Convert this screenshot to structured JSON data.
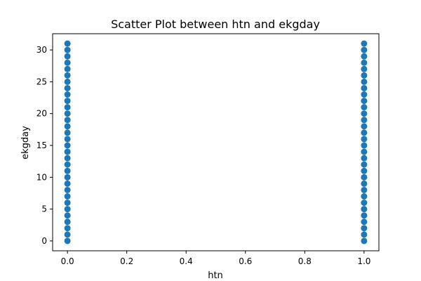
{
  "chart_data": {
    "type": "scatter",
    "title": "Scatter Plot between htn and ekgday",
    "xlabel": "htn",
    "ylabel": "ekgday",
    "xlim": [
      -0.05,
      1.05
    ],
    "ylim": [
      -1.55,
      32.55
    ],
    "xticks": [
      0.0,
      0.2,
      0.4,
      0.6,
      0.8,
      1.0
    ],
    "xtick_labels": [
      "0.0",
      "0.2",
      "0.4",
      "0.6",
      "0.8",
      "1.0"
    ],
    "yticks": [
      0,
      5,
      10,
      15,
      20,
      25,
      30
    ],
    "ytick_labels": [
      "0",
      "5",
      "10",
      "15",
      "20",
      "25",
      "30"
    ],
    "grid": false,
    "marker_color": "#1f77b4",
    "series": [
      {
        "x": [
          0,
          0,
          0,
          0,
          0,
          0,
          0,
          0,
          0,
          0,
          0,
          0,
          0,
          0,
          0,
          0,
          0,
          0,
          0,
          0,
          0,
          0,
          0,
          0,
          0,
          0,
          0,
          0,
          0,
          0,
          0,
          0,
          1,
          1,
          1,
          1,
          1,
          1,
          1,
          1,
          1,
          1,
          1,
          1,
          1,
          1,
          1,
          1,
          1,
          1,
          1,
          1,
          1,
          1,
          1,
          1,
          1,
          1,
          1,
          1,
          1,
          1,
          1,
          1
        ],
        "y": [
          0,
          1,
          2,
          3,
          4,
          5,
          6,
          7,
          8,
          9,
          10,
          11,
          12,
          13,
          14,
          15,
          16,
          17,
          18,
          19,
          20,
          21,
          22,
          23,
          24,
          25,
          26,
          27,
          28,
          29,
          30,
          31,
          0,
          1,
          2,
          3,
          4,
          5,
          6,
          7,
          8,
          9,
          10,
          11,
          12,
          13,
          14,
          15,
          16,
          17,
          18,
          19,
          20,
          21,
          22,
          23,
          24,
          25,
          26,
          27,
          28,
          29,
          30,
          31
        ]
      }
    ]
  }
}
